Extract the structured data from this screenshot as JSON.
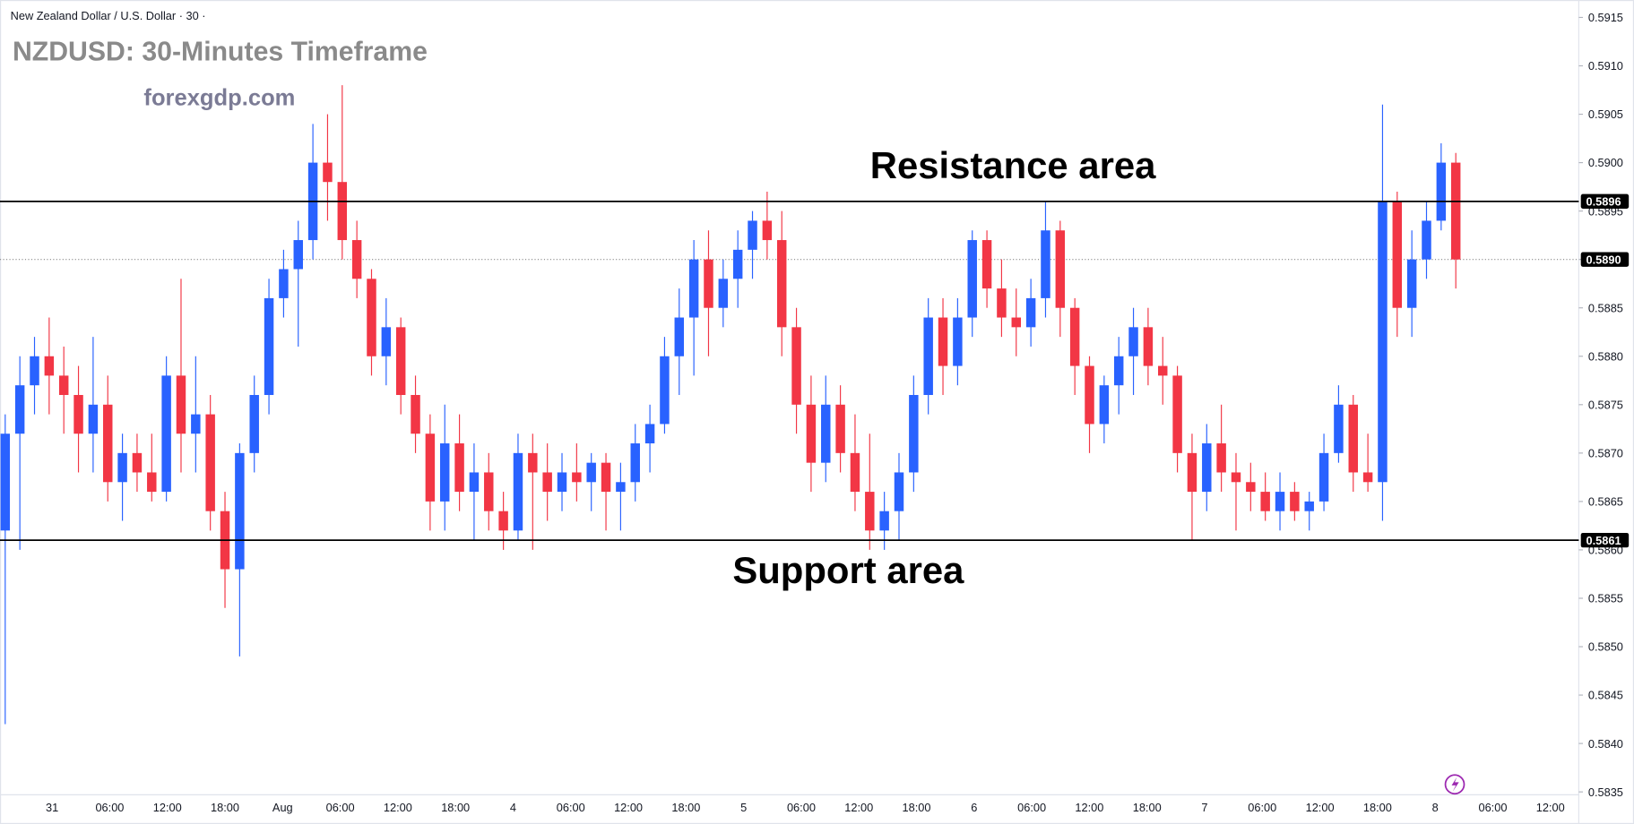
{
  "header": "New Zealand Dollar / U.S. Dollar · 30 ·",
  "chart_data": {
    "type": "candlestick",
    "title": "NZDUSD: 30-Minutes Timeframe",
    "subtitle": "forexgdp.com",
    "up_color": "#2962ff",
    "down_color": "#f23645",
    "ylim": [
      0.58347,
      0.59168
    ],
    "yticks": [
      0.5915,
      {
        "value": 0.591,
        "label": "0.5910"
      },
      0.5905,
      {
        "value": 0.59,
        "label": "0.5900"
      },
      0.5895,
      {
        "value": 0.589,
        "label": "0.5890"
      },
      0.5885,
      {
        "value": 0.588,
        "label": "0.5880"
      },
      0.5875,
      {
        "value": 0.587,
        "label": "0.5870"
      },
      0.5865,
      {
        "value": 0.586,
        "label": "0.5860"
      },
      0.5855,
      {
        "value": 0.585,
        "label": "0.5850"
      },
      0.5845,
      {
        "value": 0.584,
        "label": "0.5840"
      },
      0.5835
    ],
    "xticks": [
      "31",
      "06:00",
      "12:00",
      "18:00",
      "Aug",
      "06:00",
      "12:00",
      "18:00",
      "4",
      "06:00",
      "12:00",
      "18:00",
      "5",
      "06:00",
      "12:00",
      "18:00",
      "6",
      "06:00",
      "12:00",
      "18:00",
      "7",
      "06:00",
      "12:00",
      "18:00",
      "8",
      "06:00",
      "12:00"
    ],
    "resistance": 0.5896,
    "support": 0.5861,
    "last_price": {
      "value": 0.589,
      "label": "0.5890"
    },
    "annotations": [
      "Resistance area",
      "Support area"
    ],
    "candles": [
      [
        0.5862,
        0.5874,
        0.5842,
        0.5872
      ],
      [
        0.5872,
        0.588,
        0.586,
        0.5877
      ],
      [
        0.5877,
        0.5882,
        0.5874,
        0.588
      ],
      [
        0.588,
        0.5884,
        0.5874,
        0.5878
      ],
      [
        0.5878,
        0.5881,
        0.5872,
        0.5876
      ],
      [
        0.5876,
        0.5879,
        0.5868,
        0.5872
      ],
      [
        0.5872,
        0.5882,
        0.5868,
        0.5875
      ],
      [
        0.5875,
        0.5878,
        0.5865,
        0.5867
      ],
      [
        0.5867,
        0.5872,
        0.5863,
        0.587
      ],
      [
        0.587,
        0.5872,
        0.5866,
        0.5868
      ],
      [
        0.5868,
        0.5872,
        0.5865,
        0.5866
      ],
      [
        0.5866,
        0.588,
        0.5865,
        0.5878
      ],
      [
        0.5878,
        0.5888,
        0.5868,
        0.5872
      ],
      [
        0.5872,
        0.588,
        0.5868,
        0.5874
      ],
      [
        0.5874,
        0.5876,
        0.5862,
        0.5864
      ],
      [
        0.5864,
        0.5866,
        0.5854,
        0.5858
      ],
      [
        0.5858,
        0.5871,
        0.5849,
        0.587
      ],
      [
        0.587,
        0.5878,
        0.5868,
        0.5876
      ],
      [
        0.5876,
        0.5888,
        0.5874,
        0.5886
      ],
      [
        0.5886,
        0.5891,
        0.5884,
        0.5889
      ],
      [
        0.5889,
        0.5894,
        0.5881,
        0.5892
      ],
      [
        0.5892,
        0.5904,
        0.589,
        0.59
      ],
      [
        0.59,
        0.5905,
        0.5894,
        0.5898
      ],
      [
        0.5898,
        0.5908,
        0.589,
        0.5892
      ],
      [
        0.5892,
        0.5894,
        0.5886,
        0.5888
      ],
      [
        0.5888,
        0.5889,
        0.5878,
        0.588
      ],
      [
        0.588,
        0.5886,
        0.5877,
        0.5883
      ],
      [
        0.5883,
        0.5884,
        0.5874,
        0.5876
      ],
      [
        0.5876,
        0.5878,
        0.587,
        0.5872
      ],
      [
        0.5872,
        0.5874,
        0.5862,
        0.5865
      ],
      [
        0.5865,
        0.5875,
        0.5862,
        0.5871
      ],
      [
        0.5871,
        0.5874,
        0.5864,
        0.5866
      ],
      [
        0.5866,
        0.5871,
        0.5861,
        0.5868
      ],
      [
        0.5868,
        0.587,
        0.5862,
        0.5864
      ],
      [
        0.5864,
        0.5866,
        0.586,
        0.5862
      ],
      [
        0.5862,
        0.5872,
        0.5861,
        0.587
      ],
      [
        0.587,
        0.5872,
        0.586,
        0.5868
      ],
      [
        0.5868,
        0.5871,
        0.5863,
        0.5866
      ],
      [
        0.5866,
        0.587,
        0.5864,
        0.5868
      ],
      [
        0.5868,
        0.5871,
        0.5865,
        0.5867
      ],
      [
        0.5867,
        0.587,
        0.5864,
        0.5869
      ],
      [
        0.5869,
        0.587,
        0.5862,
        0.5866
      ],
      [
        0.5866,
        0.5869,
        0.5862,
        0.5867
      ],
      [
        0.5867,
        0.5873,
        0.5865,
        0.5871
      ],
      [
        0.5871,
        0.5875,
        0.5868,
        0.5873
      ],
      [
        0.5873,
        0.5882,
        0.5872,
        0.588
      ],
      [
        0.588,
        0.5887,
        0.5876,
        0.5884
      ],
      [
        0.5884,
        0.5892,
        0.5878,
        0.589
      ],
      [
        0.589,
        0.5893,
        0.588,
        0.5885
      ],
      [
        0.5885,
        0.589,
        0.5883,
        0.5888
      ],
      [
        0.5888,
        0.5893,
        0.5885,
        0.5891
      ],
      [
        0.5891,
        0.5895,
        0.5888,
        0.5894
      ],
      [
        0.5894,
        0.5897,
        0.589,
        0.5892
      ],
      [
        0.5892,
        0.5895,
        0.588,
        0.5883
      ],
      [
        0.5883,
        0.5885,
        0.5872,
        0.5875
      ],
      [
        0.5875,
        0.5878,
        0.5866,
        0.5869
      ],
      [
        0.5869,
        0.5878,
        0.5867,
        0.5875
      ],
      [
        0.5875,
        0.5877,
        0.5868,
        0.587
      ],
      [
        0.587,
        0.5874,
        0.5864,
        0.5866
      ],
      [
        0.5866,
        0.5872,
        0.586,
        0.5862
      ],
      [
        0.5862,
        0.5866,
        0.586,
        0.5864
      ],
      [
        0.5864,
        0.587,
        0.5861,
        0.5868
      ],
      [
        0.5868,
        0.5878,
        0.5866,
        0.5876
      ],
      [
        0.5876,
        0.5886,
        0.5874,
        0.5884
      ],
      [
        0.5884,
        0.5886,
        0.5876,
        0.5879
      ],
      [
        0.5879,
        0.5886,
        0.5877,
        0.5884
      ],
      [
        0.5884,
        0.5893,
        0.5882,
        0.5892
      ],
      [
        0.5892,
        0.5893,
        0.5885,
        0.5887
      ],
      [
        0.5887,
        0.589,
        0.5882,
        0.5884
      ],
      [
        0.5884,
        0.5887,
        0.588,
        0.5883
      ],
      [
        0.5883,
        0.5888,
        0.5881,
        0.5886
      ],
      [
        0.5886,
        0.5896,
        0.5884,
        0.5893
      ],
      [
        0.5893,
        0.5894,
        0.5882,
        0.5885
      ],
      [
        0.5885,
        0.5886,
        0.5876,
        0.5879
      ],
      [
        0.5879,
        0.588,
        0.587,
        0.5873
      ],
      [
        0.5873,
        0.5878,
        0.5871,
        0.5877
      ],
      [
        0.5877,
        0.5882,
        0.5874,
        0.588
      ],
      [
        0.588,
        0.5885,
        0.5876,
        0.5883
      ],
      [
        0.5883,
        0.5885,
        0.5877,
        0.5879
      ],
      [
        0.5879,
        0.5882,
        0.5875,
        0.5878
      ],
      [
        0.5878,
        0.5879,
        0.5868,
        0.587
      ],
      [
        0.587,
        0.5872,
        0.5861,
        0.5866
      ],
      [
        0.5866,
        0.5873,
        0.5864,
        0.5871
      ],
      [
        0.5871,
        0.5875,
        0.5866,
        0.5868
      ],
      [
        0.5868,
        0.587,
        0.5862,
        0.5867
      ],
      [
        0.5867,
        0.5869,
        0.5864,
        0.5866
      ],
      [
        0.5866,
        0.5868,
        0.5863,
        0.5864
      ],
      [
        0.5864,
        0.5868,
        0.5862,
        0.5866
      ],
      [
        0.5866,
        0.5867,
        0.5863,
        0.5864
      ],
      [
        0.5864,
        0.5866,
        0.5862,
        0.5865
      ],
      [
        0.5865,
        0.5872,
        0.5864,
        0.587
      ],
      [
        0.587,
        0.5877,
        0.5869,
        0.5875
      ],
      [
        0.5875,
        0.5876,
        0.5866,
        0.5868
      ],
      [
        0.5868,
        0.5872,
        0.5866,
        0.5867
      ],
      [
        0.5867,
        0.5906,
        0.5863,
        0.5896
      ],
      [
        0.5896,
        0.5897,
        0.5882,
        0.5885
      ],
      [
        0.5885,
        0.5893,
        0.5882,
        0.589
      ],
      [
        0.589,
        0.5896,
        0.5888,
        0.5894
      ],
      [
        0.5894,
        0.5902,
        0.5893,
        0.59
      ],
      [
        0.59,
        0.5901,
        0.5887,
        0.589
      ]
    ]
  }
}
